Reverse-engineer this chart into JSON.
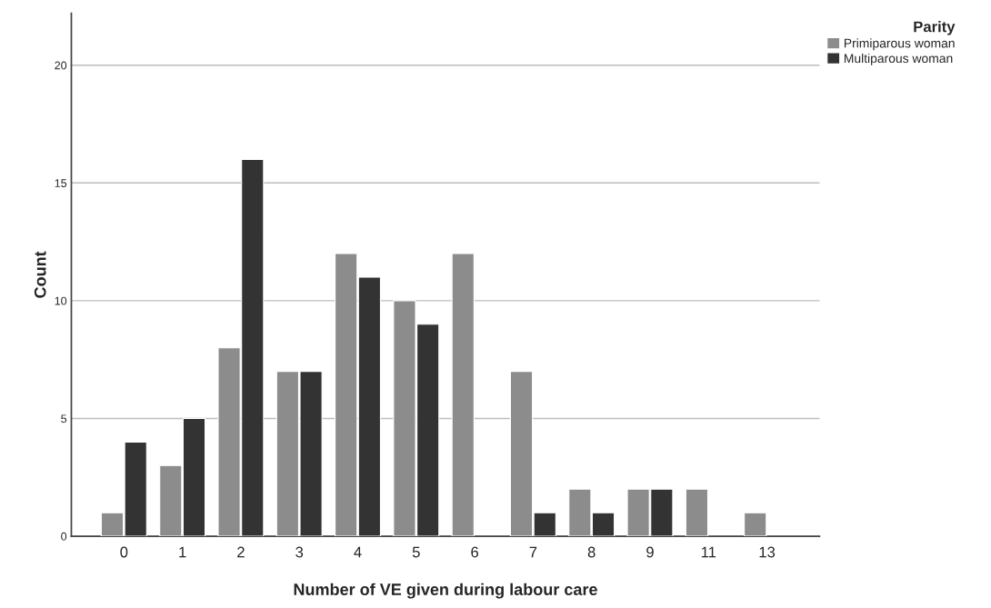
{
  "chart_data": {
    "type": "bar",
    "xlabel": "Number of VE given during labour care",
    "ylabel": "Count",
    "legend_title": "Parity",
    "categories": [
      "0",
      "1",
      "2",
      "3",
      "4",
      "5",
      "6",
      "7",
      "8",
      "9",
      "11",
      "13"
    ],
    "series": [
      {
        "name": "Primiparous woman",
        "color": "#8c8c8c",
        "values": [
          1,
          3,
          8,
          7,
          12,
          10,
          12,
          7,
          2,
          2,
          2,
          1
        ]
      },
      {
        "name": "Multiparous woman",
        "color": "#333333",
        "values": [
          4,
          5,
          16,
          7,
          11,
          9,
          null,
          1,
          1,
          2,
          null,
          null
        ]
      }
    ],
    "ylim": [
      0,
      22.2
    ],
    "yticks": [
      0,
      5,
      10,
      15,
      20
    ],
    "grid": "y",
    "legend": "top right"
  }
}
